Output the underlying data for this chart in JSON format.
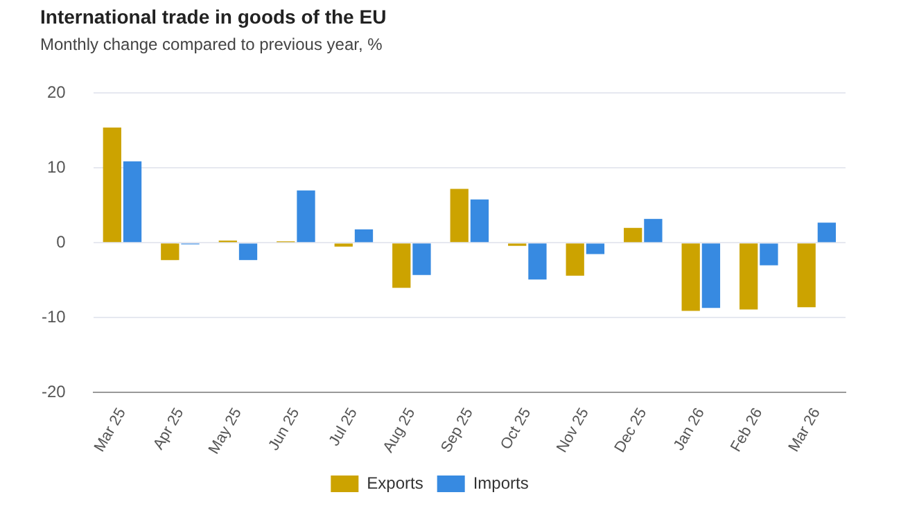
{
  "chart_data": {
    "type": "bar",
    "title": "International trade in goods of the EU",
    "subtitle": "Monthly change compared to previous year, %",
    "categories": [
      "Mar 25",
      "Apr 25",
      "May 25",
      "Jun 25",
      "Jul 25",
      "Aug 25",
      "Sep 25",
      "Oct 25",
      "Nov 25",
      "Dec 25",
      "Jan 26",
      "Feb 26",
      "Mar 26"
    ],
    "series": [
      {
        "name": "Exports",
        "color": "#cca300",
        "values": [
          15.4,
          -2.3,
          0.3,
          0.2,
          -0.5,
          -6.0,
          7.2,
          -0.4,
          -4.4,
          2.0,
          -9.1,
          -8.9,
          -8.6
        ]
      },
      {
        "name": "Imports",
        "color": "#378ae1",
        "values": [
          10.9,
          -0.2,
          -2.3,
          7.0,
          1.8,
          -4.3,
          5.8,
          -4.9,
          -1.5,
          3.2,
          -8.7,
          -3.0,
          2.7
        ]
      }
    ],
    "ylim": [
      -20,
      20
    ],
    "yticks": [
      -20,
      -10,
      0,
      10,
      20
    ],
    "grid": "y",
    "legend": "bottom"
  }
}
